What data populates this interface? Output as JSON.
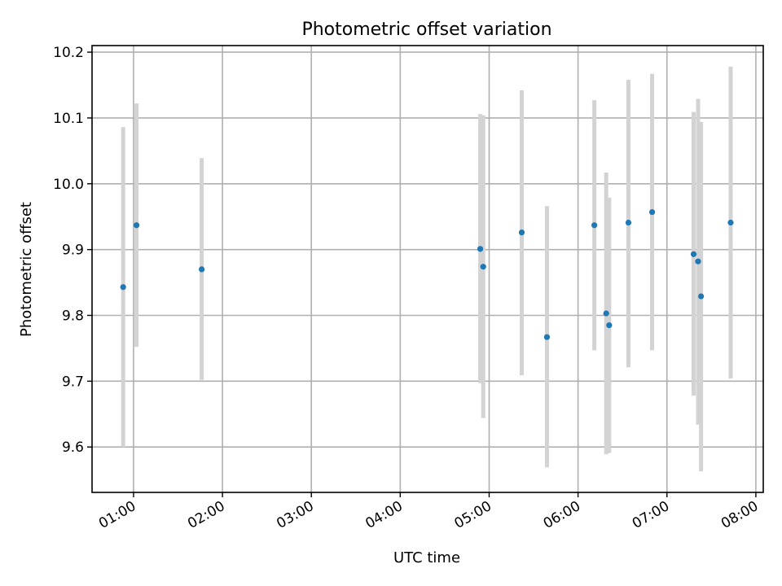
{
  "chart_data": {
    "type": "scatter",
    "title": "Photometric offset variation",
    "xlabel": "UTC time",
    "ylabel": "Photometric offset",
    "grid": true,
    "x_ticks": [
      "01:00",
      "02:00",
      "03:00",
      "04:00",
      "05:00",
      "06:00",
      "07:00",
      "08:00"
    ],
    "y_ticks": [
      "9.6",
      "9.7",
      "9.8",
      "9.9",
      "10.0",
      "10.1",
      "10.2"
    ],
    "xlim": [
      "00:32",
      "08:05"
    ],
    "ylim": [
      9.531,
      10.21
    ],
    "colors": {
      "points": "#1f77b4",
      "errorbars": "#d3d3d3"
    },
    "series": [
      {
        "x": [
          "00:53",
          "01:02",
          "01:46",
          "04:54",
          "04:56",
          "05:22",
          "05:39",
          "06:11",
          "06:19",
          "06:21",
          "06:34",
          "06:50",
          "07:18",
          "07:21",
          "07:23",
          "07:43"
        ],
        "y": [
          9.843,
          9.937,
          9.87,
          9.901,
          9.874,
          9.926,
          9.767,
          9.937,
          9.803,
          9.785,
          9.941,
          9.957,
          9.893,
          9.882,
          9.829,
          9.941
        ],
        "y_low": [
          9.6,
          9.752,
          9.702,
          9.697,
          9.644,
          9.709,
          9.569,
          9.747,
          9.589,
          9.591,
          9.721,
          9.747,
          9.678,
          9.634,
          9.563,
          9.704
        ],
        "y_high": [
          10.086,
          10.122,
          10.039,
          10.106,
          10.104,
          10.142,
          9.966,
          10.127,
          10.017,
          9.979,
          10.158,
          10.167,
          10.109,
          10.129,
          10.094,
          10.178
        ]
      }
    ]
  }
}
